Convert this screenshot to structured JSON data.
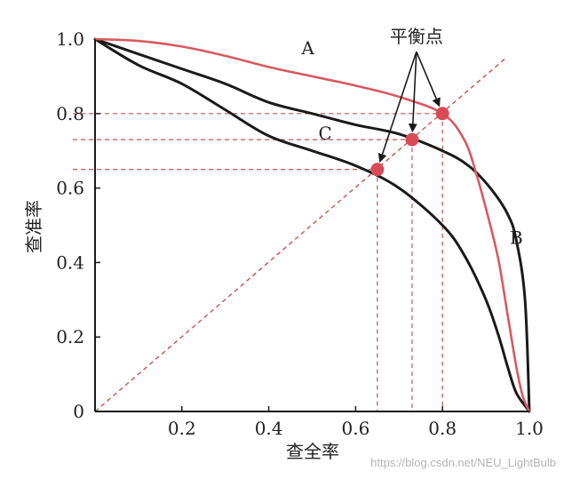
{
  "chart_data": {
    "type": "line",
    "title": "",
    "xlabel": "查全率",
    "ylabel": "查准率",
    "xlim": [
      0,
      1
    ],
    "ylim": [
      0,
      1
    ],
    "x_ticks": [
      {
        "value": 0,
        "label": ""
      },
      {
        "value": 0.2,
        "label": "0.2"
      },
      {
        "value": 0.4,
        "label": "0.4"
      },
      {
        "value": 0.6,
        "label": "0.6"
      },
      {
        "value": 0.8,
        "label": "0.8"
      },
      {
        "value": 1.0,
        "label": "1.0"
      }
    ],
    "y_ticks": [
      {
        "value": 0,
        "label": "0"
      },
      {
        "value": 0.2,
        "label": "0.2"
      },
      {
        "value": 0.4,
        "label": "0.4"
      },
      {
        "value": 0.6,
        "label": "0.6"
      },
      {
        "value": 0.8,
        "label": "0.8"
      },
      {
        "value": 1.0,
        "label": "1.0"
      }
    ],
    "series": [
      {
        "name": "A",
        "color": "#d9595f",
        "points": [
          [
            0,
            1.0
          ],
          [
            0.1,
            0.995
          ],
          [
            0.2,
            0.98
          ],
          [
            0.3,
            0.955
          ],
          [
            0.4,
            0.925
          ],
          [
            0.5,
            0.9
          ],
          [
            0.6,
            0.875
          ],
          [
            0.7,
            0.845
          ],
          [
            0.8,
            0.8
          ],
          [
            0.85,
            0.73
          ],
          [
            0.88,
            0.63
          ],
          [
            0.91,
            0.5
          ],
          [
            0.93,
            0.4
          ],
          [
            0.95,
            0.26
          ],
          [
            0.97,
            0.12
          ],
          [
            0.985,
            0.04
          ],
          [
            1.0,
            0.0
          ]
        ]
      },
      {
        "name": "B",
        "color": "#1a1a1a",
        "points": [
          [
            0,
            1.0
          ],
          [
            0.1,
            0.96
          ],
          [
            0.2,
            0.92
          ],
          [
            0.3,
            0.88
          ],
          [
            0.4,
            0.83
          ],
          [
            0.5,
            0.8
          ],
          [
            0.6,
            0.77
          ],
          [
            0.7,
            0.745
          ],
          [
            0.8,
            0.7
          ],
          [
            0.86,
            0.66
          ],
          [
            0.91,
            0.6
          ],
          [
            0.95,
            0.53
          ],
          [
            0.97,
            0.46
          ],
          [
            0.99,
            0.3
          ],
          [
            1.0,
            0.0
          ]
        ]
      },
      {
        "name": "C",
        "color": "#1a1a1a",
        "points": [
          [
            0,
            1.0
          ],
          [
            0.1,
            0.93
          ],
          [
            0.2,
            0.88
          ],
          [
            0.3,
            0.81
          ],
          [
            0.4,
            0.74
          ],
          [
            0.5,
            0.7
          ],
          [
            0.6,
            0.66
          ],
          [
            0.7,
            0.6
          ],
          [
            0.8,
            0.5
          ],
          [
            0.85,
            0.42
          ],
          [
            0.9,
            0.3
          ],
          [
            0.93,
            0.2
          ],
          [
            0.95,
            0.12
          ],
          [
            0.97,
            0.05
          ],
          [
            1.0,
            0.0
          ]
        ]
      }
    ],
    "diagonal": {
      "from": [
        0,
        0
      ],
      "to": [
        1,
        1
      ],
      "color": "#c9524e",
      "style": "dashed"
    },
    "break_even_points": [
      {
        "x": 0.65,
        "y": 0.65
      },
      {
        "x": 0.73,
        "y": 0.73
      },
      {
        "x": 0.8,
        "y": 0.8
      }
    ],
    "annotation": {
      "text": "平衡点",
      "x": 0.74,
      "y": 0.99
    },
    "curve_labels": [
      {
        "text": "A",
        "x": 0.49,
        "y": 0.96
      },
      {
        "text": "B",
        "x": 0.97,
        "y": 0.45
      },
      {
        "text": "C",
        "x": 0.53,
        "y": 0.73
      }
    ],
    "marker_color": "#d84b56",
    "grid": false,
    "legend": "none"
  },
  "watermark": "https://blog.csdn.net/NEU_LightBulb"
}
